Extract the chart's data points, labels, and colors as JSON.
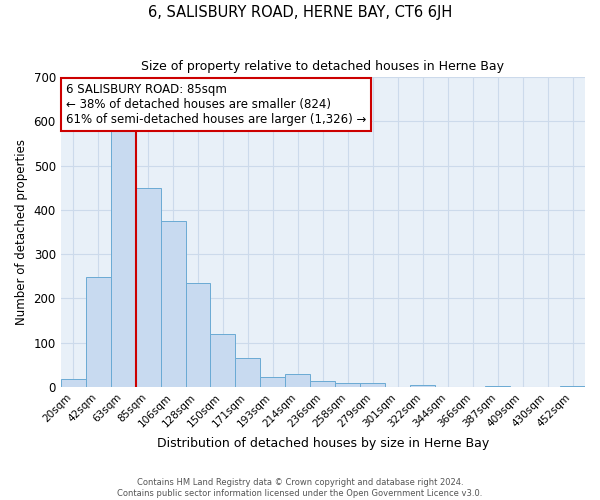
{
  "title": "6, SALISBURY ROAD, HERNE BAY, CT6 6JH",
  "subtitle": "Size of property relative to detached houses in Herne Bay",
  "xlabel": "Distribution of detached houses by size in Herne Bay",
  "ylabel": "Number of detached properties",
  "bar_labels": [
    "20sqm",
    "42sqm",
    "63sqm",
    "85sqm",
    "106sqm",
    "128sqm",
    "150sqm",
    "171sqm",
    "193sqm",
    "214sqm",
    "236sqm",
    "258sqm",
    "279sqm",
    "301sqm",
    "322sqm",
    "344sqm",
    "366sqm",
    "387sqm",
    "409sqm",
    "430sqm",
    "452sqm"
  ],
  "bar_values": [
    18,
    248,
    590,
    450,
    375,
    235,
    120,
    65,
    22,
    30,
    13,
    10,
    8,
    0,
    5,
    0,
    0,
    3,
    0,
    0,
    2
  ],
  "bar_color": "#c8daf0",
  "bar_edge_color": "#6aaad4",
  "vline_color": "#cc0000",
  "vline_x_index": 3,
  "ylim": [
    0,
    700
  ],
  "yticks": [
    0,
    100,
    200,
    300,
    400,
    500,
    600,
    700
  ],
  "annotation_title": "6 SALISBURY ROAD: 85sqm",
  "annotation_line1": "← 38% of detached houses are smaller (824)",
  "annotation_line2": "61% of semi-detached houses are larger (1,326) →",
  "annotation_box_color": "#ffffff",
  "annotation_box_edge": "#cc0000",
  "footer1": "Contains HM Land Registry data © Crown copyright and database right 2024.",
  "footer2": "Contains public sector information licensed under the Open Government Licence v3.0.",
  "grid_color": "#ccdaeb",
  "background_color": "#e8f0f8"
}
